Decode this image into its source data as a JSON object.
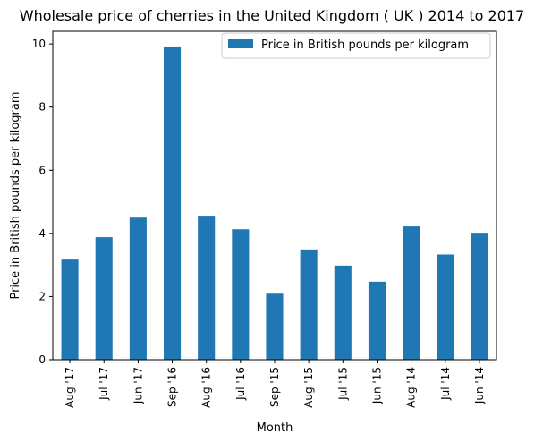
{
  "chart_data": {
    "type": "bar",
    "title": "Wholesale price of cherries in the United Kingdom ( UK ) 2014 to 2017",
    "xlabel": "Month",
    "ylabel": "Price in British pounds per kilogram",
    "ylim": [
      0,
      10.4
    ],
    "yticks": [
      0,
      2,
      4,
      6,
      8,
      10
    ],
    "grid": false,
    "legend_position": "top-right",
    "categories": [
      "Aug '17",
      "Jul '17",
      "Jun '17",
      "Sep '16",
      "Aug '16",
      "Jul '16",
      "Sep '15",
      "Aug '15",
      "Jul '15",
      "Jun '15",
      "Aug '14",
      "Jul '14",
      "Jun '14"
    ],
    "series": [
      {
        "name": "Price in British pounds per kilogram",
        "color": "#1f77b4",
        "values": [
          3.17,
          3.88,
          4.5,
          9.92,
          4.56,
          4.13,
          2.09,
          3.49,
          2.98,
          2.47,
          4.22,
          3.33,
          4.02
        ]
      }
    ]
  }
}
